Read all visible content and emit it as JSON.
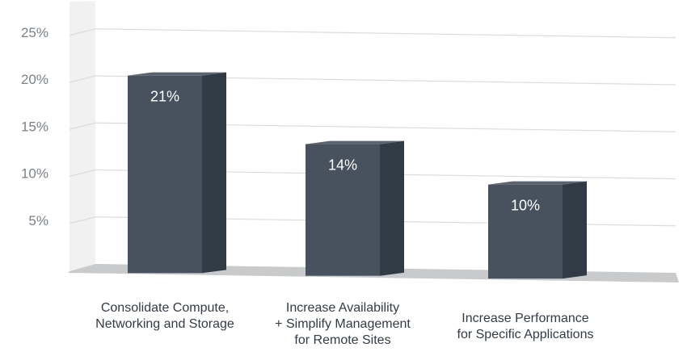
{
  "chart_data": {
    "type": "bar",
    "categories": [
      "Consolidate Compute,\nNetworking and Storage",
      "Increase Availability\n+ Simplify Management\nfor Remote Sites",
      "Increase Performance\nfor Specific Applications"
    ],
    "values": [
      21,
      14,
      10
    ],
    "data_labels": [
      "21%",
      "14%",
      "10%"
    ],
    "y_ticks": [
      "5%",
      "10%",
      "15%",
      "20%",
      "25%"
    ],
    "y_tick_values": [
      5,
      10,
      15,
      20,
      25
    ],
    "ylim": [
      0,
      25
    ],
    "grid": true,
    "legend": "none",
    "style": "3d-columns",
    "colors": {
      "bar_front": "#48525f",
      "bar_side": "#313b46",
      "bar_top": "#5a6470",
      "wall": "#f1f1f2",
      "grid": "#dcdcde",
      "floor": "#c9cacc",
      "tick_text": "#7b8187",
      "data_label": "#ffffff"
    }
  }
}
